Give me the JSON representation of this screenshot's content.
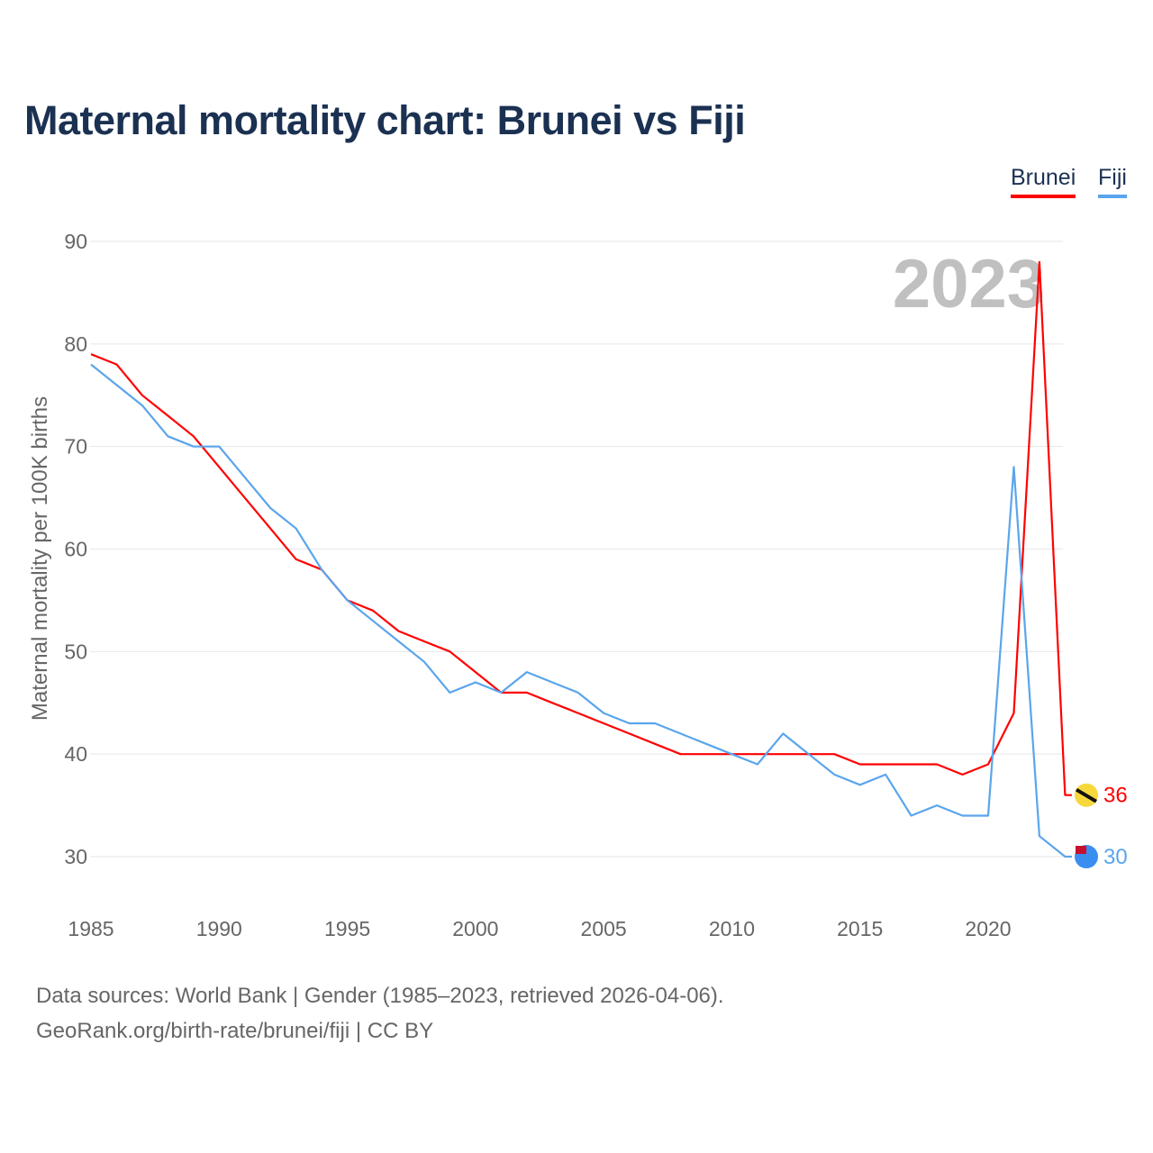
{
  "chart_data": {
    "type": "line",
    "title": "Maternal mortality chart: Brunei vs Fiji",
    "ylabel": "Maternal mortality per 100K births",
    "xlabel": "",
    "year_label": "2023",
    "xlim": [
      1985,
      2023
    ],
    "ylim": [
      25,
      90
    ],
    "x_ticks": [
      1985,
      1990,
      1995,
      2000,
      2005,
      2010,
      2015,
      2020
    ],
    "y_ticks": [
      30,
      40,
      50,
      60,
      70,
      80,
      90
    ],
    "grid": true,
    "legend_position": "top-right",
    "x": [
      1985,
      1986,
      1987,
      1988,
      1989,
      1990,
      1991,
      1992,
      1993,
      1994,
      1995,
      1996,
      1997,
      1998,
      1999,
      2000,
      2001,
      2002,
      2003,
      2004,
      2005,
      2006,
      2007,
      2008,
      2009,
      2010,
      2011,
      2012,
      2013,
      2014,
      2015,
      2016,
      2017,
      2018,
      2019,
      2020,
      2021,
      2022,
      2023
    ],
    "series": [
      {
        "name": "Brunei",
        "color": "#ff0000",
        "end_label": "36",
        "values": [
          79,
          78,
          75,
          73,
          71,
          68,
          65,
          62,
          59,
          58,
          55,
          54,
          52,
          51,
          50,
          48,
          46,
          46,
          45,
          44,
          43,
          42,
          41,
          40,
          40,
          40,
          40,
          40,
          40,
          40,
          39,
          39,
          39,
          39,
          38,
          39,
          44,
          88,
          36
        ]
      },
      {
        "name": "Fiji",
        "color": "#5aa5ec",
        "end_label": "30",
        "values": [
          78,
          76,
          74,
          71,
          70,
          70,
          67,
          64,
          62,
          58,
          55,
          53,
          51,
          49,
          46,
          47,
          46,
          48,
          47,
          46,
          44,
          43,
          43,
          42,
          41,
          40,
          39,
          42,
          40,
          38,
          37,
          38,
          34,
          35,
          34,
          34,
          68,
          32,
          30
        ]
      }
    ]
  },
  "footer": {
    "line1": "Data sources: World Bank | Gender (1985–2023, retrieved 2026-04-06).",
    "line2": "GeoRank.org/birth-rate/brunei/fiji | CC BY"
  }
}
